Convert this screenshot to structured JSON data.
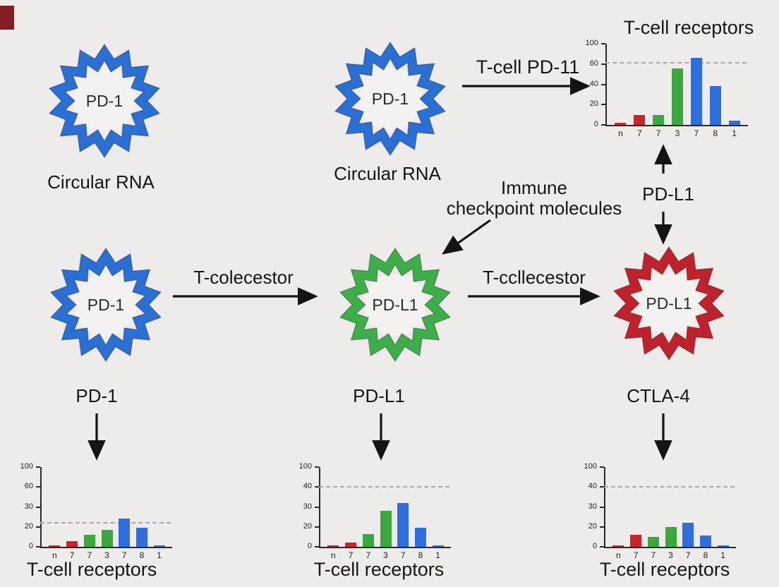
{
  "figure": {
    "background": "#edecea",
    "description_texts": {}
  },
  "colors": {
    "ring_blue": "#2a6fd4",
    "ring_green": "#3dae4a",
    "ring_red": "#c0222c",
    "bar_red": "#c9252e",
    "bar_green": "#3aa83f",
    "bar_blue": "#2e6fdd",
    "text": "#161616",
    "dashed_line": "#a9a9a9",
    "corner_swatch": "#871d24"
  },
  "rings": {
    "top_left": {
      "label": "PD-1",
      "caption": "Circular RNA",
      "color": "#2a6fd4"
    },
    "top_middle": {
      "label": "PD-1",
      "caption": "Circular RNA",
      "color": "#2a6fd4"
    },
    "mid_left": {
      "label": "PD-1",
      "caption": "PD-1",
      "color": "#2a6fd4"
    },
    "mid_center": {
      "label": "PD-L1",
      "caption": "PD-L1",
      "color": "#3dae4a"
    },
    "mid_right": {
      "label": "PD-L1",
      "caption": "CTLA-4",
      "color": "#c0222c"
    }
  },
  "labels": {
    "t_cell_pd11": "T-cell PD-11",
    "pd_l1_vertical": "PD-L1",
    "t_colecestor": "T-colecestor",
    "t_ccllecestor": "T-ccllecestor",
    "immune_line1": "Immune",
    "immune_line2": "checkpoint molecules"
  },
  "chart_data": [
    {
      "id": "top-right",
      "type": "bar",
      "title": "T-cell receptors",
      "title_position": "top",
      "categories": [
        "n",
        "7",
        "7",
        "3",
        "7",
        "8",
        "1"
      ],
      "values": [
        2,
        10,
        10,
        56,
        72,
        38,
        4
      ],
      "bar_colors": [
        "#c9252e",
        "#c9252e",
        "#3aa83f",
        "#3aa83f",
        "#2e6fdd",
        "#2e6fdd",
        "#2e6fdd"
      ],
      "y_tick_values": [
        0,
        20,
        40,
        60,
        100
      ],
      "y_tick_labels_top_to_bottom": [
        "100",
        "60",
        "40",
        "20",
        "0"
      ],
      "dashed_line_value": 62,
      "ylim": [
        0,
        100
      ],
      "grid": false,
      "legend": "none"
    },
    {
      "id": "bottom-left",
      "type": "bar",
      "title": "T-cell receptors",
      "title_position": "bottom",
      "categories": [
        "n",
        "7",
        "7",
        "3",
        "7",
        "8",
        "1"
      ],
      "values": [
        1,
        6,
        12,
        17,
        24,
        19,
        1
      ],
      "bar_colors": [
        "#c9252e",
        "#c9252e",
        "#3aa83f",
        "#3aa83f",
        "#2e6fdd",
        "#2e6fdd",
        "#2e6fdd"
      ],
      "y_tick_values": [
        0,
        20,
        30,
        60,
        100
      ],
      "y_tick_labels_top_to_bottom": [
        "100",
        "60",
        "30",
        "20",
        "0"
      ],
      "dashed_line_value": 22,
      "ylim": [
        0,
        100
      ],
      "grid": false,
      "legend": "none"
    },
    {
      "id": "bottom-middle",
      "type": "bar",
      "title": "T-cell receptors",
      "title_position": "bottom",
      "categories": [
        "n",
        "7",
        "7",
        "3",
        "7",
        "8",
        "1"
      ],
      "values": [
        1,
        4,
        13,
        28,
        32,
        19,
        1
      ],
      "bar_colors": [
        "#c9252e",
        "#c9252e",
        "#3aa83f",
        "#3aa83f",
        "#2e6fdd",
        "#2e6fdd",
        "#2e6fdd"
      ],
      "y_tick_values": [
        0,
        20,
        30,
        40,
        100
      ],
      "y_tick_labels_top_to_bottom": [
        "100",
        "40",
        "30",
        "20",
        "0"
      ],
      "dashed_line_value": 41,
      "ylim": [
        0,
        100
      ],
      "grid": false,
      "legend": "none"
    },
    {
      "id": "bottom-right",
      "type": "bar",
      "title": "T-cell receptors",
      "title_position": "bottom",
      "categories": [
        "n",
        "7",
        "7",
        "3",
        "7",
        "8",
        "1"
      ],
      "values": [
        1,
        12,
        10,
        20,
        22,
        11,
        1
      ],
      "bar_colors": [
        "#c9252e",
        "#c9252e",
        "#3aa83f",
        "#3aa83f",
        "#2e6fdd",
        "#2e6fdd",
        "#2e6fdd"
      ],
      "y_tick_values": [
        0,
        20,
        30,
        40,
        100
      ],
      "y_tick_labels_top_to_bottom": [
        "100",
        "40",
        "30",
        "20",
        "0"
      ],
      "dashed_line_value": 40,
      "ylim": [
        0,
        100
      ],
      "grid": false,
      "legend": "none"
    }
  ]
}
